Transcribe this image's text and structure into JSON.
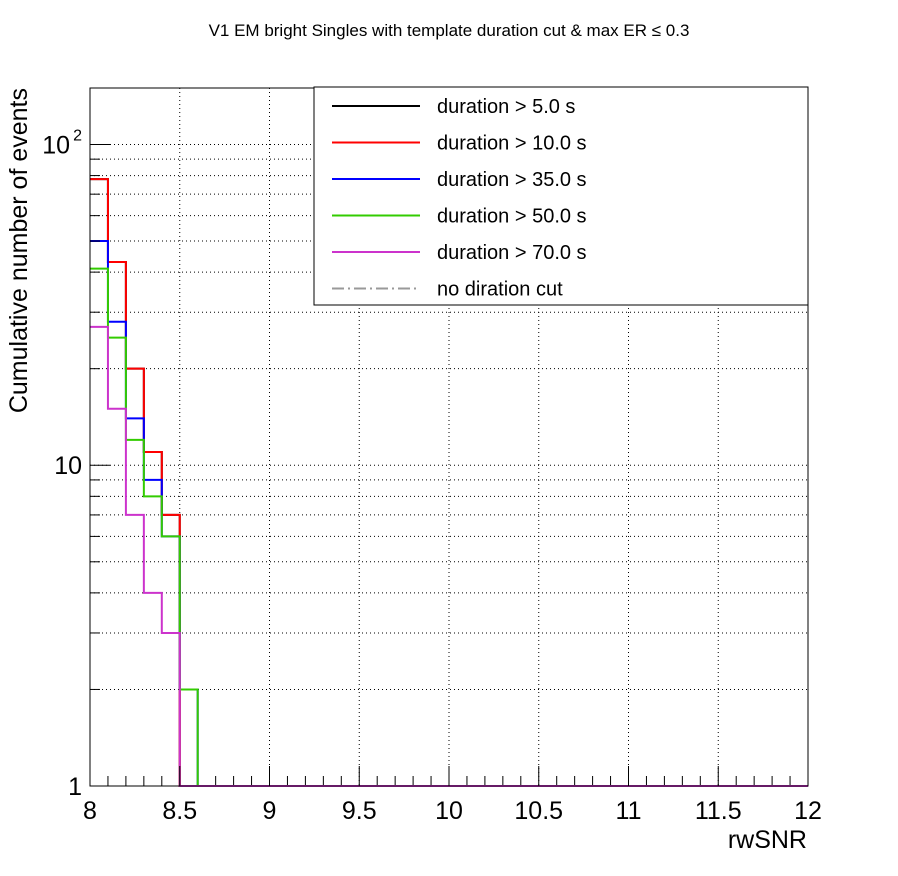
{
  "chart_data": {
    "type": "step-histogram",
    "title": "V1 EM bright Singles with template duration cut & max ER ≤ 0.3",
    "xlabel": "rwSNR",
    "ylabel": "Cumulative number of events",
    "xlim": [
      8,
      12
    ],
    "ylim": [
      1,
      150
    ],
    "yscale": "log",
    "grid": true,
    "legend_position": "top-right",
    "bin_width": 0.1,
    "x_ticks": [
      "8",
      "8.5",
      "9",
      "9.5",
      "10",
      "10.5",
      "11",
      "11.5",
      "12"
    ],
    "x_tick_values": [
      8,
      8.5,
      9,
      9.5,
      10,
      10.5,
      11,
      11.5,
      12
    ],
    "y_ticks": [
      {
        "value": 1,
        "label": "1"
      },
      {
        "value": 10,
        "label": "10"
      },
      {
        "value": 100,
        "label": "10",
        "exp": "2"
      }
    ],
    "series": [
      {
        "name": "duration > 5.0 s",
        "color": "#000000",
        "dash": "solid",
        "values": [
          78,
          43,
          20,
          11,
          7,
          0,
          0,
          0,
          0,
          0,
          0,
          0,
          0,
          0,
          0,
          0,
          0,
          0,
          0,
          0,
          0,
          0,
          0,
          0,
          0,
          0,
          0,
          0,
          0,
          0,
          0,
          0,
          0,
          0,
          0,
          0,
          0,
          0,
          0,
          0
        ]
      },
      {
        "name": "duration > 10.0 s",
        "color": "#ff0000",
        "dash": "solid",
        "values": [
          78,
          43,
          20,
          11,
          7,
          0,
          0,
          0,
          0,
          0,
          0,
          0,
          0,
          0,
          0,
          0,
          0,
          0,
          0,
          0,
          0,
          0,
          0,
          0,
          0,
          0,
          0,
          0,
          0,
          0,
          0,
          0,
          0,
          0,
          0,
          0,
          0,
          0,
          0,
          0
        ]
      },
      {
        "name": "duration > 35.0 s",
        "color": "#0000ff",
        "dash": "solid",
        "values": [
          50,
          28,
          14,
          9,
          6,
          2,
          0,
          0,
          0,
          0,
          0,
          0,
          0,
          0,
          0,
          0,
          0,
          0,
          0,
          0,
          0,
          0,
          0,
          0,
          0,
          0,
          0,
          0,
          0,
          0,
          0,
          0,
          0,
          0,
          0,
          0,
          0,
          0,
          0,
          0
        ]
      },
      {
        "name": "duration > 50.0 s",
        "color": "#33cc00",
        "dash": "solid",
        "values": [
          41,
          25,
          12,
          8,
          6,
          2,
          0,
          0,
          0,
          0,
          0,
          0,
          0,
          0,
          0,
          0,
          0,
          0,
          0,
          0,
          0,
          0,
          0,
          0,
          0,
          0,
          0,
          0,
          0,
          0,
          0,
          0,
          0,
          0,
          0,
          0,
          0,
          0,
          0,
          0
        ]
      },
      {
        "name": "duration > 70.0 s",
        "color": "#cc33cc",
        "dash": "solid",
        "values": [
          27,
          15,
          7,
          4,
          3,
          0,
          0,
          0,
          0,
          0,
          0,
          0,
          0,
          0,
          0,
          0,
          0,
          0,
          0,
          0,
          0,
          0,
          0,
          0,
          0,
          0,
          0,
          0,
          0,
          0,
          0,
          0,
          0,
          0,
          0,
          0,
          0,
          0,
          0,
          0
        ]
      },
      {
        "name": "no diration cut",
        "color": "#999999",
        "dash": "dashdot",
        "values": []
      }
    ]
  }
}
